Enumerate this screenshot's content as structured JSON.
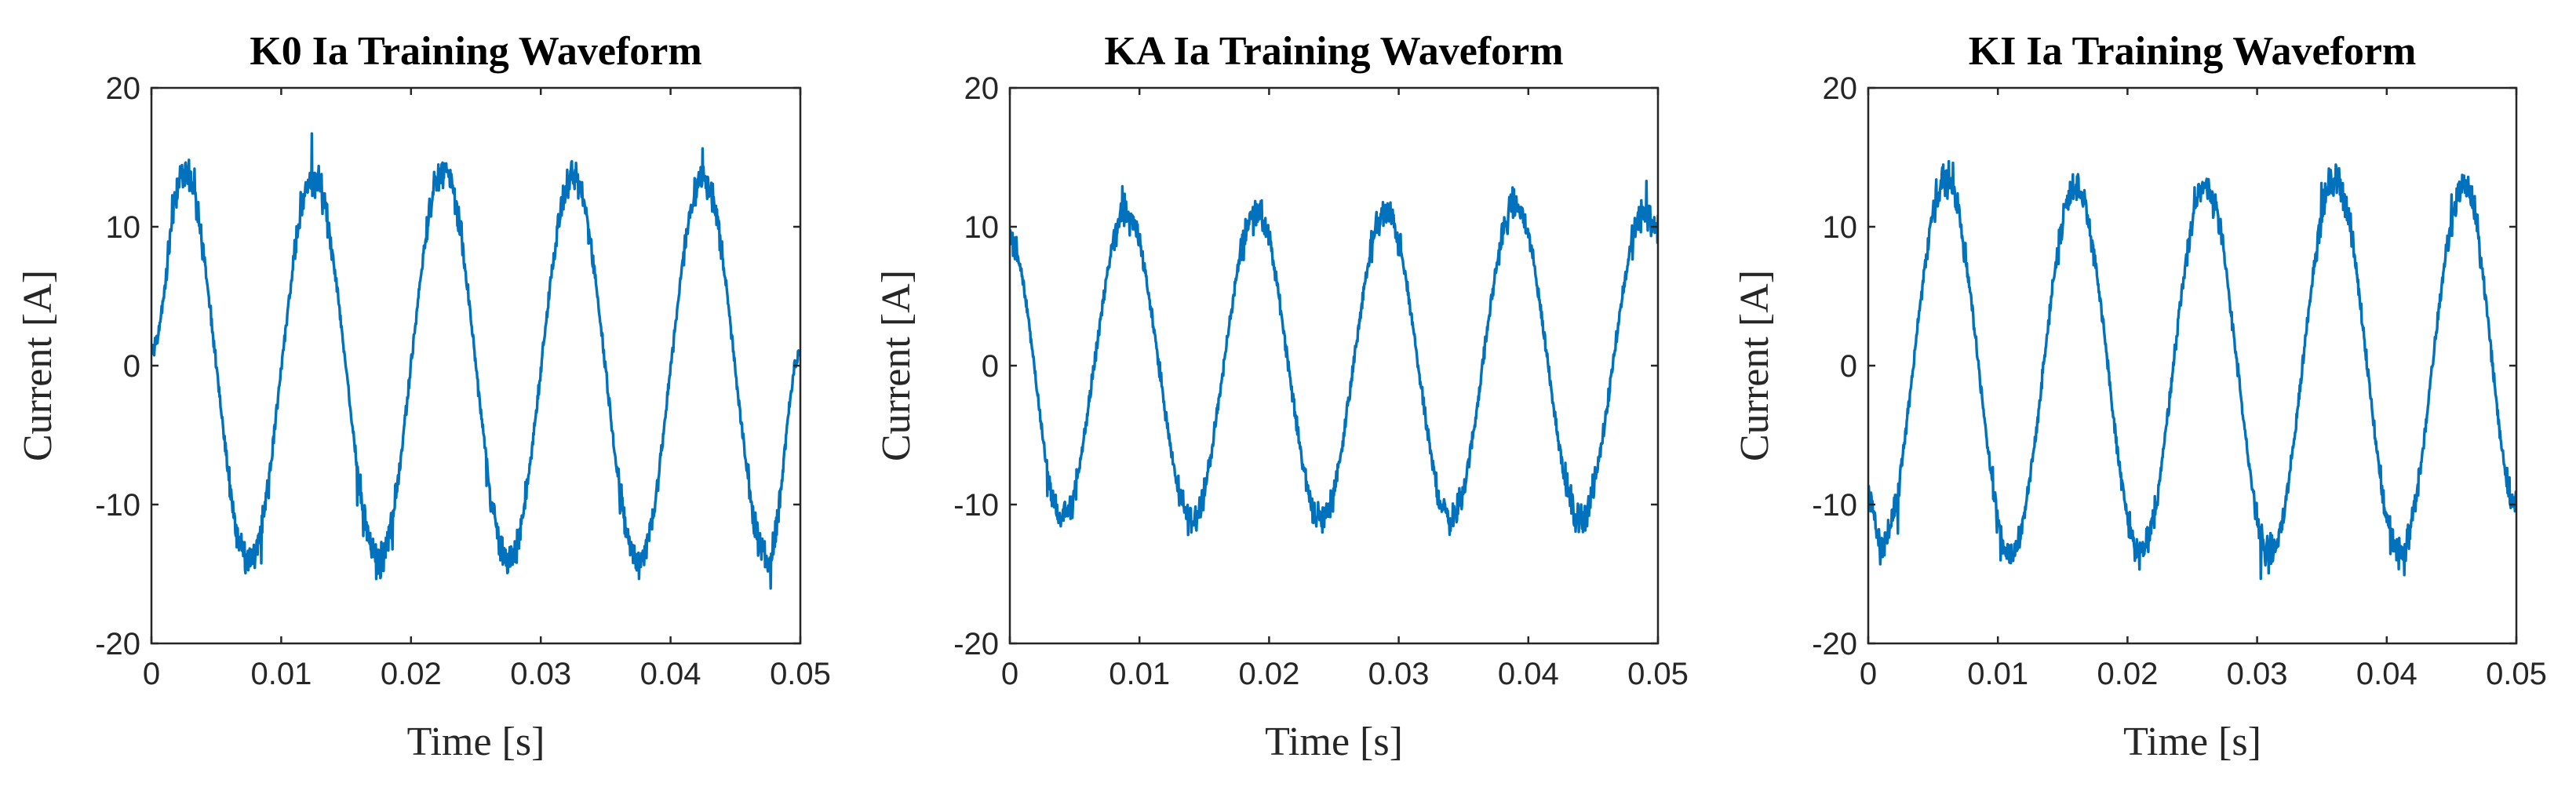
{
  "colors": {
    "series": "#0072BD",
    "axis": "#262626",
    "background": "#ffffff"
  },
  "chart_data": [
    {
      "type": "line",
      "title": "K0 Ia Training Waveform",
      "xlabel": "Time [s]",
      "ylabel": "Current [A]",
      "xlim": [
        0,
        0.05
      ],
      "ylim": [
        -20,
        20
      ],
      "xticks": [
        0,
        0.01,
        0.02,
        0.03,
        0.04,
        0.05
      ],
      "xtick_labels": [
        "0",
        "0.01",
        "0.02",
        "0.03",
        "0.04",
        "0.05"
      ],
      "yticks": [
        -20,
        -10,
        0,
        10,
        20
      ],
      "ytick_labels": [
        "-20",
        "-10",
        "0",
        "10",
        "20"
      ],
      "series": [
        {
          "name": "Ia",
          "x": [
            0,
            0.0025,
            0.0075,
            0.0125,
            0.0175,
            0.0225,
            0.0275,
            0.0325,
            0.0375,
            0.0425,
            0.0475,
            0.05
          ],
          "y": [
            1,
            14,
            -14,
            13.5,
            -14,
            14,
            -14,
            13.5,
            -14,
            13.5,
            -14,
            1
          ]
        }
      ]
    },
    {
      "type": "line",
      "title": "KA Ia Training Waveform",
      "xlabel": "Time [s]",
      "ylabel": "Current [A]",
      "xlim": [
        0,
        0.05
      ],
      "ylim": [
        -20,
        20
      ],
      "xticks": [
        0,
        0.01,
        0.02,
        0.03,
        0.04,
        0.05
      ],
      "xtick_labels": [
        "0",
        "0.01",
        "0.02",
        "0.03",
        "0.04",
        "0.05"
      ],
      "yticks": [
        -20,
        -10,
        0,
        10,
        20
      ],
      "ytick_labels": [
        "-20",
        "-10",
        "0",
        "10",
        "20"
      ],
      "series": [
        {
          "name": "Ia",
          "x": [
            0,
            0.004,
            0.009,
            0.014,
            0.019,
            0.024,
            0.029,
            0.034,
            0.039,
            0.044,
            0.049,
            0.05
          ],
          "y": [
            9,
            -11,
            11,
            -11,
            11,
            -11,
            11,
            -11,
            11.5,
            -11,
            11,
            9.5
          ]
        }
      ]
    },
    {
      "type": "line",
      "title": "KI Ia Training Waveform",
      "xlabel": "Time [s]",
      "ylabel": "Current [A]",
      "xlim": [
        0,
        0.05
      ],
      "ylim": [
        -20,
        20
      ],
      "xticks": [
        0,
        0.01,
        0.02,
        0.03,
        0.04,
        0.05
      ],
      "xtick_labels": [
        "0",
        "0.01",
        "0.02",
        "0.03",
        "0.04",
        "0.05"
      ],
      "yticks": [
        -20,
        -10,
        0,
        10,
        20
      ],
      "ytick_labels": [
        "-20",
        "-10",
        "0",
        "10",
        "20"
      ],
      "series": [
        {
          "name": "Ia",
          "x": [
            0,
            0.001,
            0.006,
            0.011,
            0.016,
            0.021,
            0.026,
            0.031,
            0.036,
            0.041,
            0.046,
            0.05
          ],
          "y": [
            -9,
            -13,
            13.5,
            -13.5,
            13,
            -13.5,
            13,
            -13.5,
            13.5,
            -13.5,
            13,
            -10
          ]
        }
      ]
    }
  ]
}
